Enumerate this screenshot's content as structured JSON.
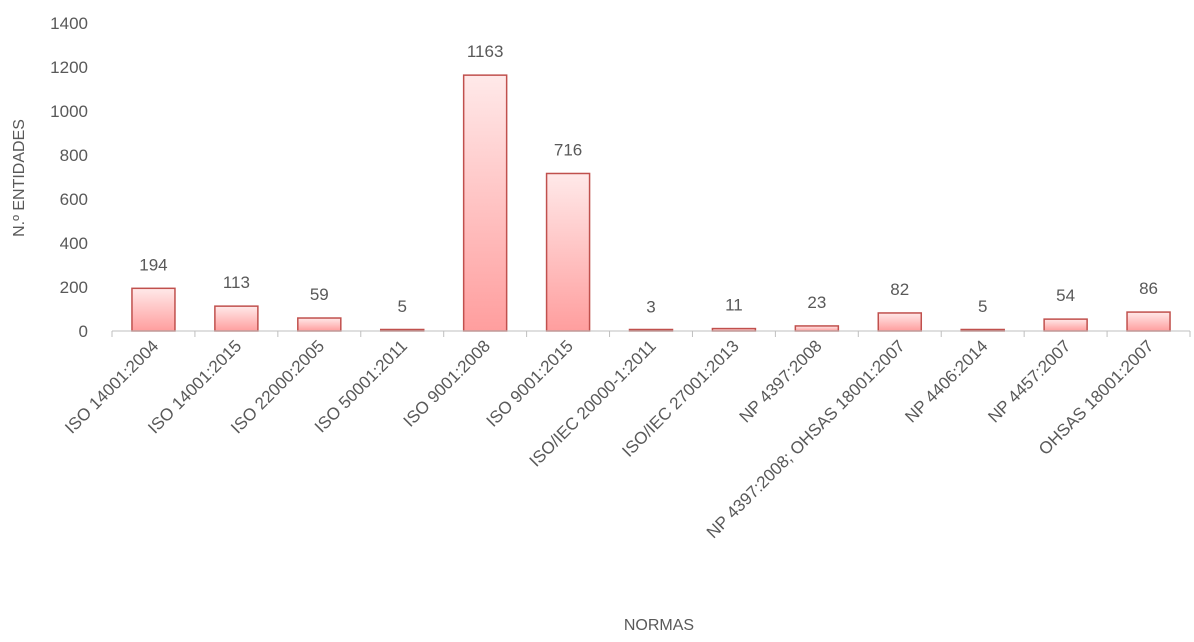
{
  "chart_data": {
    "type": "bar",
    "title": "",
    "xlabel": "NORMAS",
    "ylabel": "N.º ENTIDADES",
    "ylim": [
      0,
      1400
    ],
    "yticks": [
      0,
      200,
      400,
      600,
      800,
      1000,
      1200,
      1400
    ],
    "grid": false,
    "legend": "none",
    "categories": [
      "ISO 14001:2004",
      "ISO 14001:2015",
      "ISO 22000:2005",
      "ISO 50001:2011",
      "ISO 9001:2008",
      "ISO 9001:2015",
      "ISO/IEC 20000-1:2011",
      "ISO/IEC 27001:2013",
      "NP 4397:2008",
      "NP 4397:2008; OHSAS 18001:2007",
      "NP 4406:2014",
      "NP 4457:2007",
      "OHSAS 18001:2007"
    ],
    "values": [
      194,
      113,
      59,
      5,
      1163,
      716,
      3,
      11,
      23,
      82,
      5,
      54,
      86
    ],
    "colors": {
      "bar_fill_top": "#ffe9e9",
      "bar_fill_bottom": "#ff9e9e",
      "bar_stroke": "#c0504d",
      "axis": "#bfbfbf",
      "text": "#595959"
    }
  }
}
